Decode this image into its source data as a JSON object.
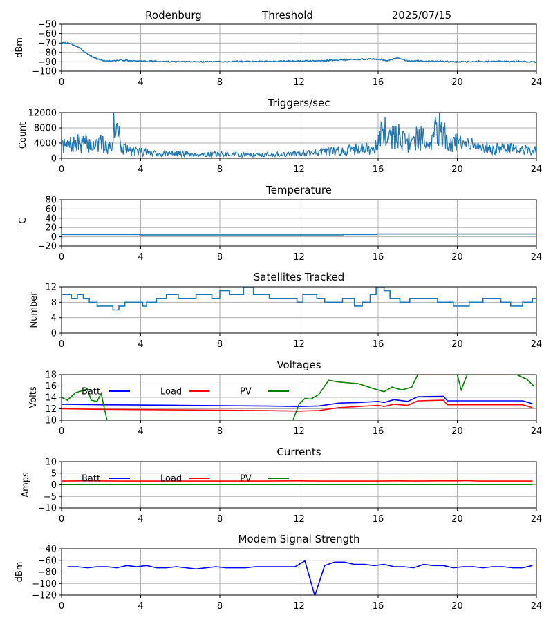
{
  "header": {
    "site": "Rodenburg",
    "label": "Threshold",
    "date": "2025/07/15"
  },
  "colors": {
    "default": "#1f77b4",
    "blue": "#0000ff",
    "red": "#ff0000",
    "green": "#008000",
    "grid": "#b0b0b0"
  },
  "chart_data": [
    {
      "id": "threshold",
      "type": "line",
      "title": "",
      "ylabel": "dBm",
      "xlim": [
        0,
        24
      ],
      "ylim": [
        -100,
        -50
      ],
      "xticks": [
        0,
        4,
        8,
        12,
        16,
        20,
        24
      ],
      "yticks": [
        -100,
        -90,
        -80,
        -70,
        -60,
        -50
      ],
      "ytick_labels": [
        "−100",
        "−90",
        "−80",
        "−70",
        "−60",
        "−50"
      ],
      "grid": true,
      "series": [
        {
          "color": "#1f77b4",
          "noise": 0.6,
          "seed": 3,
          "x": [
            0,
            0.3,
            0.6,
            0.9,
            1.2,
            1.5,
            1.8,
            2.2,
            2.7,
            3.0,
            3.5,
            6,
            10,
            13,
            14,
            15,
            15.5,
            16,
            16.5,
            17,
            17.5,
            18,
            19,
            20,
            21,
            22,
            23,
            24
          ],
          "y": [
            -70,
            -70,
            -72,
            -75,
            -80,
            -84,
            -87,
            -89,
            -89,
            -88,
            -89,
            -90,
            -89.5,
            -89,
            -88,
            -87.5,
            -87,
            -87,
            -89,
            -86,
            -89,
            -89,
            -89.5,
            -90,
            -89.5,
            -89.5,
            -89.5,
            -90
          ]
        }
      ]
    },
    {
      "id": "triggers",
      "type": "line",
      "title": "Triggers/sec",
      "ylabel": "Count",
      "xlim": [
        0,
        24
      ],
      "ylim": [
        0,
        12000
      ],
      "xticks": [
        0,
        4,
        8,
        12,
        16,
        20,
        24
      ],
      "yticks": [
        0,
        4000,
        8000,
        12000
      ],
      "ytick_labels": [
        "0",
        "4000",
        "8000",
        "12000"
      ],
      "grid": true,
      "series": [
        {
          "color": "#1f77b4",
          "noise": 900,
          "seed": 7,
          "x": [
            0,
            0.5,
            1,
            1.5,
            2,
            2.5,
            2.7,
            2.85,
            3,
            3.5,
            4,
            5,
            6,
            7,
            8,
            9,
            10,
            11,
            12,
            13,
            14,
            15,
            15.8,
            16,
            16.3,
            16.6,
            17,
            17.5,
            18,
            18.5,
            19,
            19.5,
            20,
            21,
            22,
            23,
            24
          ],
          "y": [
            3000,
            3500,
            4000,
            3500,
            3800,
            2500,
            12000,
            9000,
            2500,
            2000,
            1800,
            1200,
            1300,
            1000,
            1100,
            1000,
            900,
            1000,
            1300,
            1600,
            1900,
            2400,
            2800,
            4500,
            7000,
            5000,
            6000,
            4000,
            5500,
            4500,
            8000,
            5000,
            4000,
            3000,
            2500,
            2500,
            2200
          ]
        }
      ]
    },
    {
      "id": "temperature",
      "type": "line",
      "title": "Temperature",
      "ylabel": "°C",
      "xlim": [
        0,
        24
      ],
      "ylim": [
        -20,
        80
      ],
      "xticks": [
        0,
        4,
        8,
        12,
        16,
        20,
        24
      ],
      "yticks": [
        -20,
        0,
        20,
        40,
        60,
        80
      ],
      "ytick_labels": [
        "−20",
        "0",
        "20",
        "40",
        "60",
        "80"
      ],
      "grid": true,
      "series": [
        {
          "color": "#1f77b4",
          "step": false,
          "x": [
            0,
            3.9,
            4.0,
            14.2,
            14.3,
            15.9,
            16.0,
            24
          ],
          "y": [
            5,
            5,
            4,
            4,
            5,
            5,
            6,
            6
          ]
        }
      ]
    },
    {
      "id": "satellites",
      "type": "line",
      "title": "Satellites Tracked",
      "ylabel": "Number",
      "xlim": [
        0,
        24
      ],
      "ylim": [
        0,
        12
      ],
      "xticks": [
        0,
        4,
        8,
        12,
        16,
        20,
        24
      ],
      "yticks": [
        0,
        4,
        8,
        12
      ],
      "ytick_labels": [
        "0",
        "4",
        "8",
        "12"
      ],
      "grid": true,
      "series": [
        {
          "color": "#1f77b4",
          "step": true,
          "x": [
            0,
            0.5,
            0.8,
            1.1,
            1.4,
            1.8,
            2.3,
            2.6,
            2.9,
            3.2,
            4.1,
            4.3,
            4.8,
            5.3,
            5.9,
            6.8,
            7.6,
            8.0,
            8.5,
            9.2,
            9.7,
            10.5,
            11.3,
            11.9,
            12.2,
            12.9,
            13.3,
            14.2,
            14.8,
            15.2,
            15.6,
            15.9,
            16.3,
            16.6,
            17.1,
            17.6,
            18.2,
            19.0,
            19.8,
            20.6,
            21.3,
            22.2,
            22.7,
            23.3,
            23.8,
            24
          ],
          "y": [
            10,
            9,
            10,
            9,
            8,
            7,
            7,
            6,
            7,
            8,
            7,
            8,
            9,
            10,
            9,
            10,
            9,
            11,
            10,
            12,
            10,
            9,
            9,
            8,
            10,
            9,
            8,
            9,
            7,
            8,
            10,
            12,
            11,
            9,
            8,
            9,
            9,
            8,
            7,
            8,
            9,
            8,
            7,
            8,
            9,
            10
          ]
        }
      ]
    },
    {
      "id": "voltages",
      "type": "line",
      "title": "Voltages",
      "ylabel": "Volts",
      "xlim": [
        0,
        24
      ],
      "ylim": [
        10,
        18
      ],
      "xticks": [
        0,
        4,
        8,
        12,
        16,
        20,
        24
      ],
      "yticks": [
        10,
        12,
        14,
        16,
        18
      ],
      "ytick_labels": [
        "10",
        "12",
        "14",
        "16",
        "18"
      ],
      "grid": true,
      "legend": "top-left",
      "series": [
        {
          "name": "Batt",
          "color": "#0000ff",
          "x": [
            0,
            2,
            6,
            10,
            12,
            13,
            14,
            15,
            16,
            16.3,
            16.8,
            17.5,
            18,
            19.3,
            19.5,
            20,
            21,
            23.3,
            23.8
          ],
          "y": [
            12.8,
            12.7,
            12.6,
            12.5,
            12.4,
            12.5,
            13.0,
            13.1,
            13.3,
            13.1,
            13.6,
            13.3,
            14.1,
            14.2,
            13.4,
            13.4,
            13.4,
            13.4,
            12.9
          ]
        },
        {
          "name": "Load",
          "color": "#ff0000",
          "x": [
            0,
            2,
            6,
            10,
            12,
            13,
            14,
            15,
            16,
            16.3,
            16.8,
            17.5,
            18,
            19.3,
            19.5,
            20,
            21,
            23.3,
            23.8
          ],
          "y": [
            12.0,
            11.9,
            11.8,
            11.7,
            11.6,
            11.7,
            12.2,
            12.4,
            12.6,
            12.4,
            12.8,
            12.6,
            13.4,
            13.5,
            12.7,
            12.7,
            12.7,
            12.7,
            12.2
          ]
        },
        {
          "name": "PV",
          "color": "#008000",
          "x": [
            0,
            0.3,
            0.7,
            1.0,
            1.3,
            1.5,
            1.8,
            2.0,
            2.3,
            11.7,
            12.0,
            12.3,
            12.6,
            13.0,
            13.5,
            14.0,
            15.0,
            15.8,
            16.3,
            16.7,
            17.2,
            17.7,
            18.0,
            20.0,
            20.2,
            20.5,
            23.0,
            23.5,
            23.9
          ],
          "y": [
            14,
            13.5,
            14.8,
            15.1,
            15.5,
            13.5,
            13.3,
            14.7,
            10,
            10,
            12.8,
            13.8,
            13.7,
            14.5,
            17.0,
            16.7,
            16.4,
            15.5,
            15.0,
            15.8,
            15.3,
            15.8,
            18,
            18,
            15.3,
            18,
            18,
            17.2,
            15.9
          ]
        }
      ]
    },
    {
      "id": "currents",
      "type": "line",
      "title": "Currents",
      "ylabel": "Amps",
      "xlim": [
        0,
        24
      ],
      "ylim": [
        -10,
        10
      ],
      "xticks": [
        0,
        4,
        8,
        12,
        16,
        20,
        24
      ],
      "yticks": [
        -10,
        -5,
        0,
        5,
        10
      ],
      "ytick_labels": [
        "−10",
        "−5",
        "0",
        "5",
        "10"
      ],
      "grid": true,
      "legend": "top-left",
      "series": [
        {
          "name": "Batt",
          "color": "#0000ff",
          "x": [
            0,
            23.8
          ],
          "y": [
            0.2,
            0.2
          ]
        },
        {
          "name": "Load",
          "color": "#ff0000",
          "x": [
            0,
            1,
            3,
            6,
            10,
            12,
            13,
            16,
            17,
            18,
            19,
            20,
            20.5,
            21,
            23.8
          ],
          "y": [
            1.6,
            1.7,
            1.6,
            1.6,
            1.6,
            1.7,
            1.6,
            1.6,
            1.7,
            1.6,
            1.7,
            1.7,
            1.8,
            1.6,
            1.6
          ]
        },
        {
          "name": "PV",
          "color": "#008000",
          "x": [
            0,
            23.8
          ],
          "y": [
            0.1,
            0.1
          ]
        }
      ]
    },
    {
      "id": "modem",
      "type": "line",
      "title": "Modem Signal Strength",
      "ylabel": "dBm",
      "xlim": [
        0,
        24
      ],
      "ylim": [
        -120,
        -40
      ],
      "xticks": [
        0,
        4,
        8,
        12,
        16,
        20,
        24
      ],
      "yticks": [
        -120,
        -100,
        -80,
        -60,
        -40
      ],
      "ytick_labels": [
        "−120",
        "−100",
        "−80",
        "−60",
        "−40"
      ],
      "grid": true,
      "series": [
        {
          "color": "#0000ff",
          "x": [
            0.3,
            0.8,
            1.3,
            1.8,
            2.3,
            2.8,
            3.3,
            3.8,
            4.3,
            4.8,
            5.3,
            5.8,
            6.3,
            6.8,
            7.3,
            7.8,
            8.3,
            8.8,
            9.3,
            9.8,
            10.3,
            10.8,
            11.3,
            11.8,
            12.3,
            12.8,
            13.3,
            13.8,
            14.3,
            14.8,
            15.3,
            15.8,
            16.3,
            16.8,
            17.3,
            17.8,
            18.3,
            18.8,
            19.3,
            19.8,
            20.3,
            20.8,
            21.3,
            21.8,
            22.3,
            22.8,
            23.3,
            23.8
          ],
          "y": [
            -71,
            -71,
            -73,
            -71,
            -71,
            -73,
            -69,
            -71,
            -69,
            -73,
            -73,
            -71,
            -73,
            -75,
            -73,
            -71,
            -73,
            -73,
            -73,
            -71,
            -71,
            -71,
            -71,
            -71,
            -61,
            -121,
            -69,
            -63,
            -63,
            -67,
            -67,
            -69,
            -67,
            -71,
            -71,
            -73,
            -67,
            -69,
            -69,
            -73,
            -71,
            -71,
            -73,
            -71,
            -71,
            -73,
            -73,
            -69
          ]
        }
      ]
    }
  ]
}
